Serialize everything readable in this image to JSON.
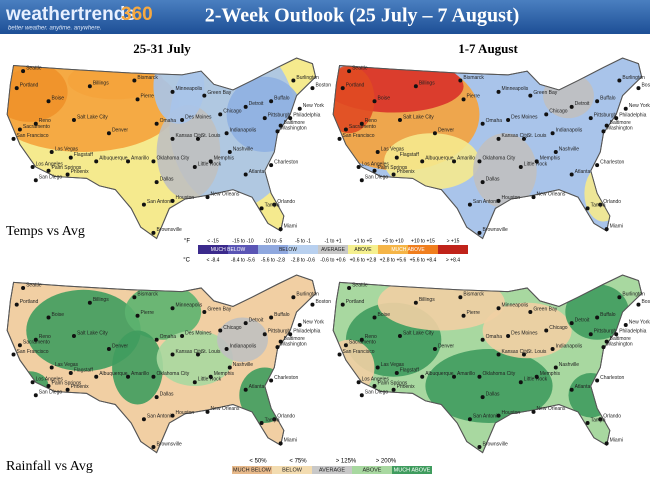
{
  "header": {
    "logo": "weathertrends",
    "logo_suffix": "360",
    "tagline": "better weather. anytime. anywhere.",
    "title": "2-Week Outlook (25 July – 7 August)"
  },
  "panels": {
    "periods": [
      "25-31 July",
      "1-7 August"
    ],
    "rows": [
      "Temps vs Avg",
      "Rainfall vs Avg"
    ]
  },
  "cities": [
    "Seattle",
    "Portland",
    "Boise",
    "Sacramento",
    "San Francisco",
    "Reno",
    "Salt Lake City",
    "Las Vegas",
    "Los Angeles",
    "San Diego",
    "Palm Springs",
    "Phoenix",
    "Flagstaff",
    "Albuquerque",
    "Denver",
    "Billings",
    "Bismarck",
    "Pierre",
    "Minneapolis",
    "Omaha",
    "Des Moines",
    "Kansas City",
    "Oklahoma City",
    "Amarillo",
    "Dallas",
    "San Antonio",
    "Houston",
    "Brownsville",
    "New Orleans",
    "Little Rock",
    "Memphis",
    "St. Louis",
    "Chicago",
    "Detroit",
    "Indianapolis",
    "Nashville",
    "Atlanta",
    "Charleston",
    "Orlando",
    "Tampa",
    "Miami",
    "Washington",
    "Baltimore",
    "Philadelphia",
    "New York",
    "Boston",
    "Burlington",
    "Buffalo",
    "Pittsburgh",
    "Green Bay"
  ],
  "temp_legend": {
    "unit_f": "°F",
    "unit_c": "°C",
    "ranges_f": [
      "< -15",
      "-15 to -10",
      "-10 to -5",
      "-5 to -1",
      "-1 to +1",
      "+1 to +5",
      "+5 to +10",
      "+10 to +15",
      "> +15"
    ],
    "ranges_c": [
      "< -8.4",
      "-8.4 to -5.6",
      "-5.6 to -2.8",
      "-2.8 to -0.6",
      "-0.6 to +0.6",
      "+0.6 to +2.8",
      "+2.8 to +5.6",
      "+5.6 to +8.4",
      "> +8.4"
    ],
    "categories": [
      "MUCH BELOW",
      "BELOW",
      "AVERAGE",
      "ABOVE",
      "MUCH ABOVE"
    ]
  },
  "rain_legend": {
    "thresholds": [
      "< 50%",
      "< 75%",
      "> 125%",
      "> 200%"
    ],
    "categories": [
      "MUCH BELOW",
      "BELOW",
      "AVERAGE",
      "ABOVE",
      "MUCH ABOVE"
    ]
  }
}
